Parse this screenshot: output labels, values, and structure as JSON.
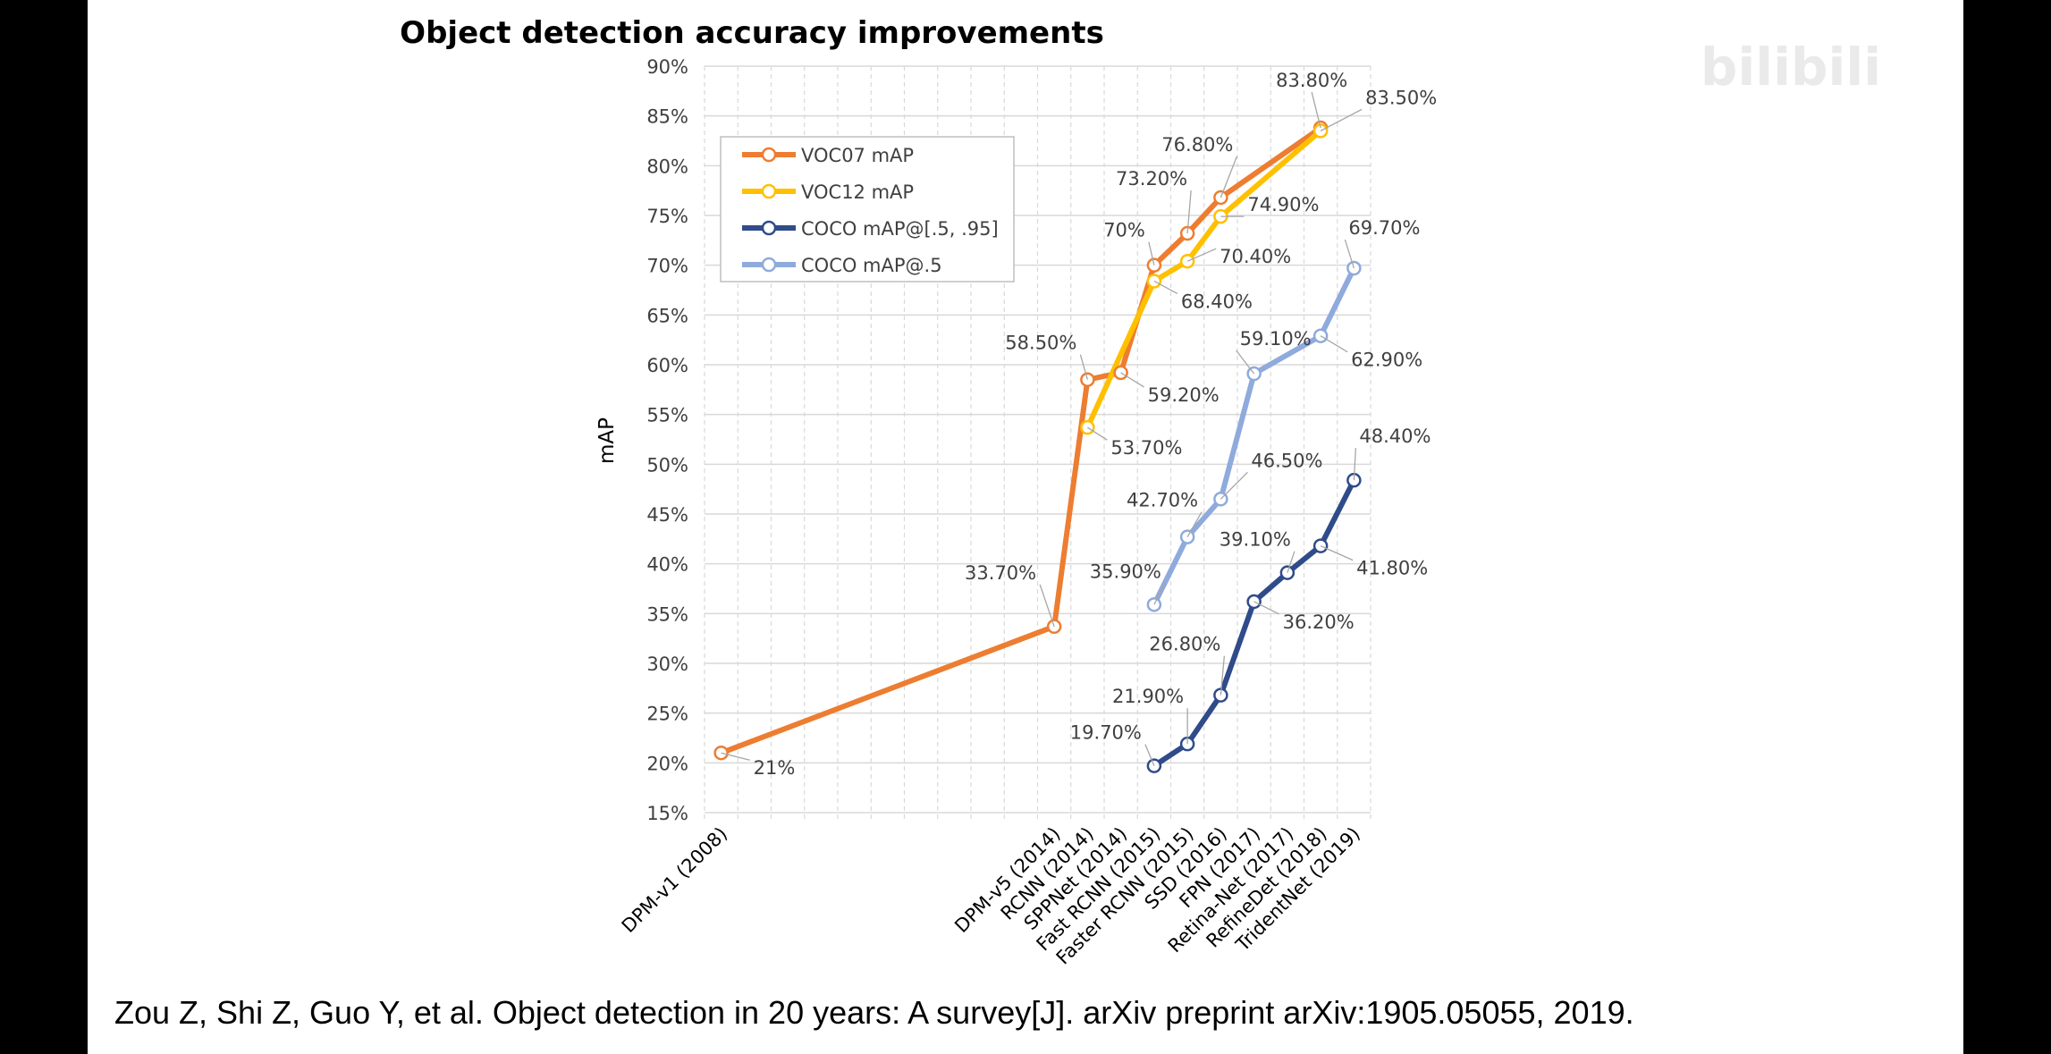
{
  "chart_data": {
    "type": "line",
    "title": "Object detection accuracy improvements",
    "xlabel": "",
    "ylabel": "mAP",
    "ylim": [
      15,
      90
    ],
    "yticks": [
      "15%",
      "20%",
      "25%",
      "30%",
      "35%",
      "40%",
      "45%",
      "50%",
      "55%",
      "60%",
      "65%",
      "70%",
      "75%",
      "80%",
      "85%",
      "90%"
    ],
    "categories": [
      "DPM-v1 (2008)",
      "DPM-v5 (2014)",
      "RCNN (2014)",
      "SPPNet (2014)",
      "Fast RCNN (2015)",
      "Faster RCNN (2015)",
      "SSD (2016)",
      "FPN (2017)",
      "Retina-Net (2017)",
      "RefineDet (2018)",
      "TridentNet (2019)"
    ],
    "grid": true,
    "legend_position": "top-left",
    "series": [
      {
        "name": "VOC07 mAP",
        "color": "#ED7D31",
        "points": [
          [
            0,
            21,
            "21%"
          ],
          [
            10,
            33.7,
            "33.70%"
          ],
          [
            11,
            58.5,
            "58.50%"
          ],
          [
            12,
            59.2,
            "59.20%"
          ],
          [
            13,
            70,
            "70%"
          ],
          [
            14,
            73.2,
            "73.20%"
          ],
          [
            15,
            76.8,
            "76.80%"
          ],
          [
            18,
            83.8,
            "83.80%"
          ]
        ]
      },
      {
        "name": "VOC12 mAP",
        "color": "#FFC000",
        "points": [
          [
            11,
            53.7,
            "53.70%"
          ],
          [
            13,
            68.4,
            "68.40%"
          ],
          [
            14,
            70.4,
            "70.40%"
          ],
          [
            15,
            74.9,
            "74.90%"
          ],
          [
            18,
            83.5,
            "83.50%"
          ]
        ]
      },
      {
        "name": "COCO mAP@[.5, .95]",
        "color": "#2F4B8A",
        "points": [
          [
            13,
            19.7,
            "19.70%"
          ],
          [
            14,
            21.9,
            "21.90%"
          ],
          [
            15,
            26.8,
            "26.80%"
          ],
          [
            16,
            36.2,
            "36.20%"
          ],
          [
            17,
            39.1,
            "39.10%"
          ],
          [
            18,
            41.8,
            "41.80%"
          ],
          [
            19,
            48.4,
            "48.40%"
          ]
        ]
      },
      {
        "name": "COCO mAP@.5",
        "color": "#8FAADC",
        "points": [
          [
            13,
            35.9,
            "35.90%"
          ],
          [
            14,
            42.7,
            "42.70%"
          ],
          [
            15,
            46.5,
            "46.50%"
          ],
          [
            16,
            59.1,
            "59.10%"
          ],
          [
            18,
            62.9,
            "62.90%"
          ],
          [
            19,
            69.7,
            "69.70%"
          ]
        ]
      }
    ]
  },
  "citation": "Zou Z, Shi Z, Guo Y, et al. Object detection in 20 years: A survey[J]. arXiv preprint arXiv:1905.05055, 2019.",
  "watermark": "bilibili"
}
